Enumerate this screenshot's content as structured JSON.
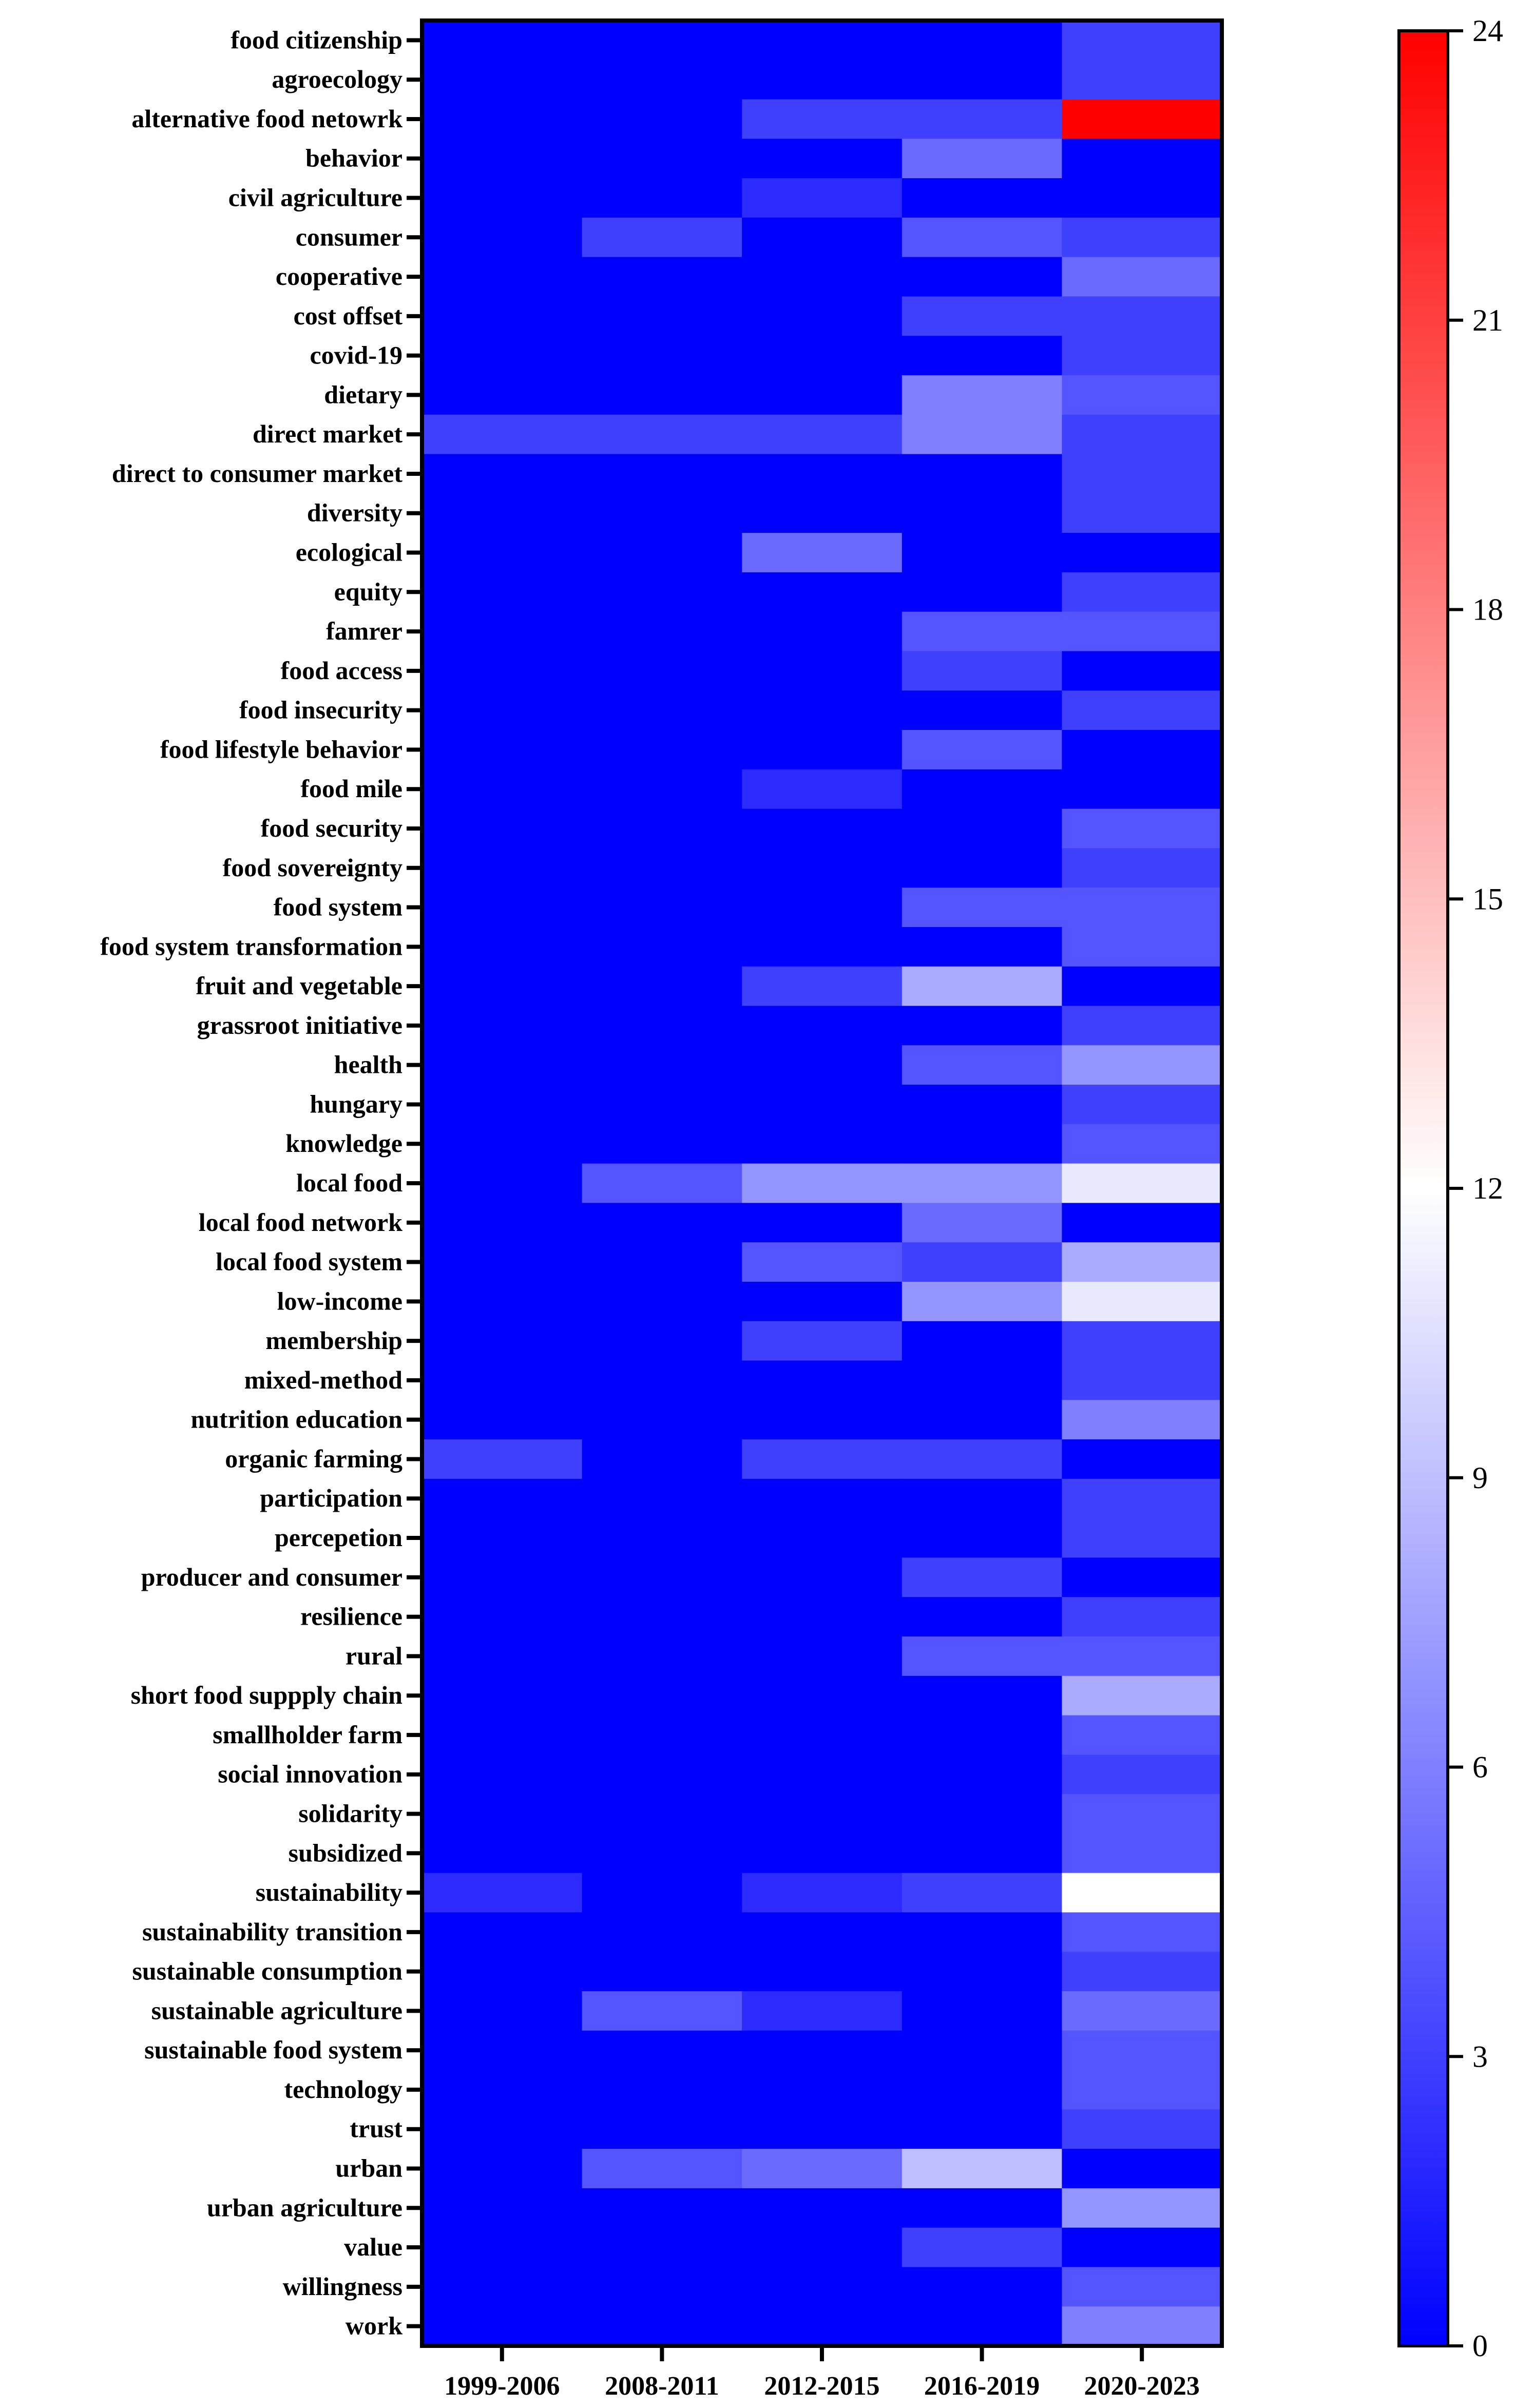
{
  "chart_data": {
    "type": "heatmap",
    "title": "",
    "xlabel": "",
    "ylabel": "",
    "columns": [
      "1999-2006",
      "2008-2011",
      "2012-2015",
      "2016-2019",
      "2020-2023"
    ],
    "rows": [
      {
        "label": "food citizenship",
        "values": [
          0,
          0,
          0,
          0,
          3
        ]
      },
      {
        "label": "agroecology",
        "values": [
          0,
          0,
          0,
          0,
          3
        ]
      },
      {
        "label": "alternative food netowrk",
        "values": [
          0,
          0,
          3,
          3,
          24
        ]
      },
      {
        "label": "behavior",
        "values": [
          0,
          0,
          0,
          5,
          0
        ]
      },
      {
        "label": "civil agriculture",
        "values": [
          0,
          0,
          2,
          0,
          0
        ]
      },
      {
        "label": "consumer",
        "values": [
          0,
          3,
          0,
          4,
          3
        ]
      },
      {
        "label": "cooperative",
        "values": [
          0,
          0,
          0,
          0,
          5
        ]
      },
      {
        "label": "cost offset",
        "values": [
          0,
          0,
          0,
          3,
          3
        ]
      },
      {
        "label": "covid-19",
        "values": [
          0,
          0,
          0,
          0,
          3
        ]
      },
      {
        "label": "dietary",
        "values": [
          0,
          0,
          0,
          6,
          4
        ]
      },
      {
        "label": "direct market",
        "values": [
          3,
          3,
          3,
          6,
          3
        ]
      },
      {
        "label": "direct to consumer market",
        "values": [
          0,
          0,
          0,
          0,
          3
        ]
      },
      {
        "label": "diversity",
        "values": [
          0,
          0,
          0,
          0,
          3
        ]
      },
      {
        "label": "ecological",
        "values": [
          0,
          0,
          5,
          0,
          0
        ]
      },
      {
        "label": "equity",
        "values": [
          0,
          0,
          0,
          0,
          3
        ]
      },
      {
        "label": "famrer",
        "values": [
          0,
          0,
          0,
          4,
          4
        ]
      },
      {
        "label": "food access",
        "values": [
          0,
          0,
          0,
          3,
          0
        ]
      },
      {
        "label": "food insecurity",
        "values": [
          0,
          0,
          0,
          0,
          3
        ]
      },
      {
        "label": "food lifestyle behavior",
        "values": [
          0,
          0,
          0,
          4,
          0
        ]
      },
      {
        "label": "food mile",
        "values": [
          0,
          0,
          2,
          0,
          0
        ]
      },
      {
        "label": "food security",
        "values": [
          0,
          0,
          0,
          0,
          4
        ]
      },
      {
        "label": "food sovereignty",
        "values": [
          0,
          0,
          0,
          0,
          3
        ]
      },
      {
        "label": "food system",
        "values": [
          0,
          0,
          0,
          4,
          4
        ]
      },
      {
        "label": "food system transformation",
        "values": [
          0,
          0,
          0,
          0,
          4
        ]
      },
      {
        "label": "fruit and vegetable",
        "values": [
          0,
          0,
          3,
          8,
          0
        ]
      },
      {
        "label": "grassroot initiative",
        "values": [
          0,
          0,
          0,
          0,
          3
        ]
      },
      {
        "label": "health",
        "values": [
          0,
          0,
          0,
          4,
          7
        ]
      },
      {
        "label": "hungary",
        "values": [
          0,
          0,
          0,
          0,
          3
        ]
      },
      {
        "label": "knowledge",
        "values": [
          0,
          0,
          0,
          0,
          4
        ]
      },
      {
        "label": "local food",
        "values": [
          0,
          4,
          7,
          7,
          11
        ]
      },
      {
        "label": "local food network",
        "values": [
          0,
          0,
          0,
          5,
          0
        ]
      },
      {
        "label": "local food system",
        "values": [
          0,
          0,
          4,
          3,
          8
        ]
      },
      {
        "label": "low-income",
        "values": [
          0,
          0,
          0,
          7,
          11
        ]
      },
      {
        "label": "membership",
        "values": [
          0,
          0,
          3,
          0,
          3
        ]
      },
      {
        "label": "mixed-method",
        "values": [
          0,
          0,
          0,
          0,
          3
        ]
      },
      {
        "label": "nutrition education",
        "values": [
          0,
          0,
          0,
          0,
          6
        ]
      },
      {
        "label": "organic farming",
        "values": [
          3,
          0,
          3,
          3,
          0
        ]
      },
      {
        "label": "participation",
        "values": [
          0,
          0,
          0,
          0,
          3
        ]
      },
      {
        "label": "percepetion",
        "values": [
          0,
          0,
          0,
          0,
          3
        ]
      },
      {
        "label": "producer and consumer",
        "values": [
          0,
          0,
          0,
          3,
          0
        ]
      },
      {
        "label": "resilience",
        "values": [
          0,
          0,
          0,
          0,
          3
        ]
      },
      {
        "label": "rural",
        "values": [
          0,
          0,
          0,
          4,
          4
        ]
      },
      {
        "label": "short food suppply chain",
        "values": [
          0,
          0,
          0,
          0,
          8
        ]
      },
      {
        "label": "smallholder farm",
        "values": [
          0,
          0,
          0,
          0,
          4
        ]
      },
      {
        "label": "social innovation",
        "values": [
          0,
          0,
          0,
          0,
          3
        ]
      },
      {
        "label": "solidarity",
        "values": [
          0,
          0,
          0,
          0,
          4
        ]
      },
      {
        "label": "subsidized",
        "values": [
          0,
          0,
          0,
          0,
          4
        ]
      },
      {
        "label": "sustainability",
        "values": [
          2,
          0,
          2,
          3,
          12
        ]
      },
      {
        "label": "sustainability transition",
        "values": [
          0,
          0,
          0,
          0,
          4
        ]
      },
      {
        "label": "sustainable consumption",
        "values": [
          0,
          0,
          0,
          0,
          3
        ]
      },
      {
        "label": "sustainable agriculture",
        "values": [
          0,
          4,
          2,
          0,
          5
        ]
      },
      {
        "label": "sustainable food system",
        "values": [
          0,
          0,
          0,
          0,
          4
        ]
      },
      {
        "label": "technology",
        "values": [
          0,
          0,
          0,
          0,
          4
        ]
      },
      {
        "label": "trust",
        "values": [
          0,
          0,
          0,
          0,
          3
        ]
      },
      {
        "label": "urban",
        "values": [
          0,
          4,
          5,
          9,
          0
        ]
      },
      {
        "label": "urban agriculture",
        "values": [
          0,
          0,
          0,
          0,
          7
        ]
      },
      {
        "label": "value",
        "values": [
          0,
          0,
          0,
          3,
          0
        ]
      },
      {
        "label": "willingness",
        "values": [
          0,
          0,
          0,
          0,
          4
        ]
      },
      {
        "label": "work",
        "values": [
          0,
          0,
          0,
          0,
          6
        ]
      }
    ],
    "colorbar": {
      "min": 0,
      "mid": 12,
      "max": 24,
      "ticks": [
        0,
        3,
        6,
        9,
        12,
        15,
        18,
        21,
        24
      ],
      "colors": [
        "#0000ff",
        "#ffffff",
        "#ff0000"
      ]
    }
  }
}
